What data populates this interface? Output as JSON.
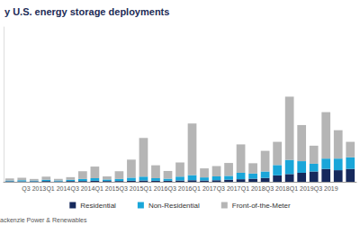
{
  "chart_data": {
    "type": "bar",
    "title": "y U.S. energy storage deployments",
    "source": "ackenzie Power & Renewables",
    "stacked": true,
    "legend": "bottom",
    "grid": false,
    "tick_labels": "x",
    "categories": [
      null,
      null,
      "Q3 2013",
      null,
      "Q1 2014",
      null,
      "Q3 2014",
      null,
      "Q1 2015",
      null,
      "Q3 2015",
      null,
      "Q1 2016",
      null,
      "Q3 2016",
      null,
      "Q1 2017",
      null,
      "Q3 2017",
      null,
      "Q1 2018",
      null,
      "Q3 2018",
      null,
      "Q1 2019",
      null,
      "Q3 2019",
      null,
      null
    ],
    "ylim": [
      0,
      600
    ],
    "series": [
      {
        "name": "Residential",
        "color": "#16295c",
        "values": [
          2,
          2,
          2,
          3,
          2,
          3,
          3,
          4,
          3,
          3,
          4,
          5,
          4,
          4,
          5,
          6,
          5,
          6,
          8,
          10,
          12,
          15,
          25,
          30,
          35,
          40,
          50,
          45,
          50
        ]
      },
      {
        "name": "Non-Residential",
        "color": "#1aa6d9",
        "values": [
          3,
          4,
          3,
          5,
          3,
          5,
          8,
          10,
          6,
          8,
          12,
          15,
          10,
          8,
          15,
          20,
          12,
          15,
          15,
          25,
          20,
          25,
          40,
          55,
          45,
          30,
          40,
          45,
          45
        ]
      },
      {
        "name": "Front-of-the-Meter",
        "color": "#b5b5b5",
        "values": [
          8,
          10,
          6,
          12,
          6,
          10,
          30,
          45,
          12,
          30,
          70,
          150,
          50,
          30,
          55,
          200,
          35,
          40,
          50,
          110,
          40,
          80,
          90,
          245,
          140,
          70,
          180,
          110,
          60
        ]
      }
    ]
  }
}
